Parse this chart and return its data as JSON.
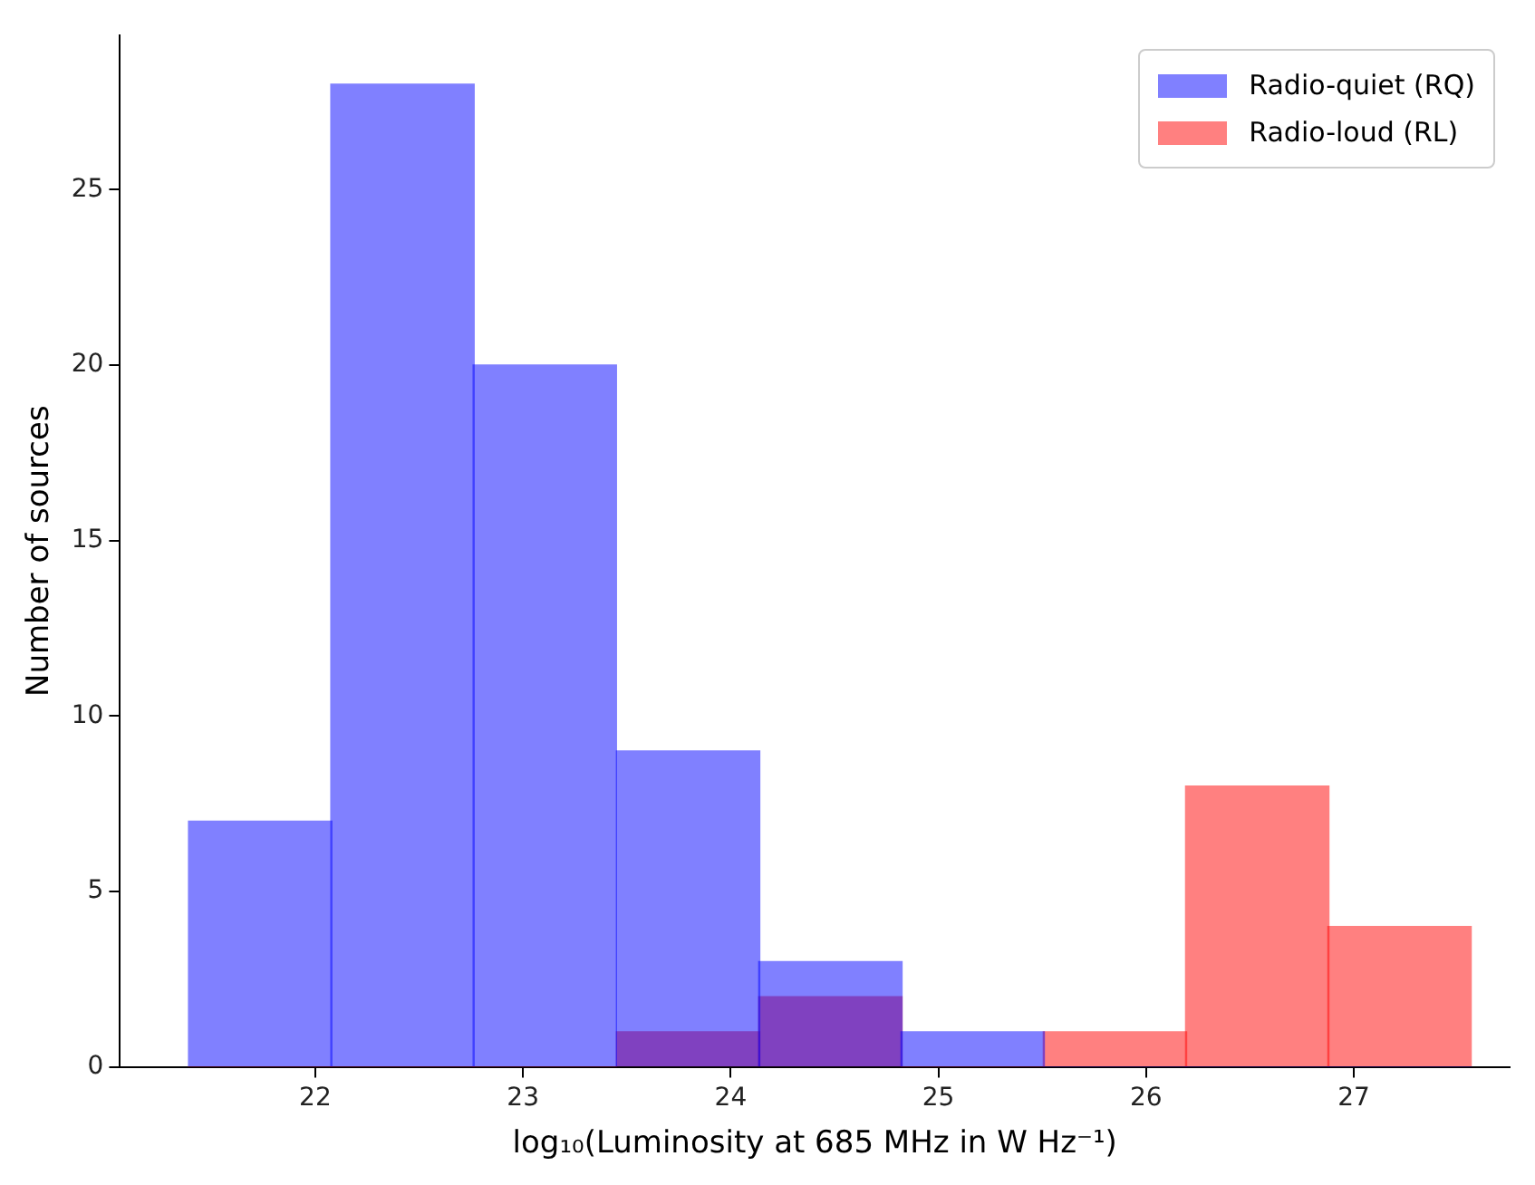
{
  "chart_data": {
    "type": "histogram",
    "xlabel": "log₁₀(Luminosity at 685 MHz in W Hz⁻¹)",
    "ylabel": "Number of sources",
    "bins": [
      21.39,
      22.08,
      22.76,
      23.45,
      24.14,
      24.82,
      25.51,
      26.19,
      26.88,
      27.56
    ],
    "series": [
      {
        "name": "Radio-quiet (RQ)",
        "color": "#8080ff",
        "values": [
          7,
          28,
          20,
          9,
          3,
          1,
          0,
          0,
          0
        ]
      },
      {
        "name": "Radio-loud (RL)",
        "color": "#ff8080",
        "values": [
          0,
          0,
          0,
          1,
          2,
          0,
          1,
          8,
          4
        ]
      }
    ],
    "xlim": [
      21.06,
      27.75
    ],
    "ylim": [
      0,
      29.4
    ],
    "xticks": [
      22,
      23,
      24,
      25,
      26,
      27
    ],
    "yticks": [
      0,
      5,
      10,
      15,
      20,
      25
    ],
    "grid": false,
    "legend": "top right"
  }
}
